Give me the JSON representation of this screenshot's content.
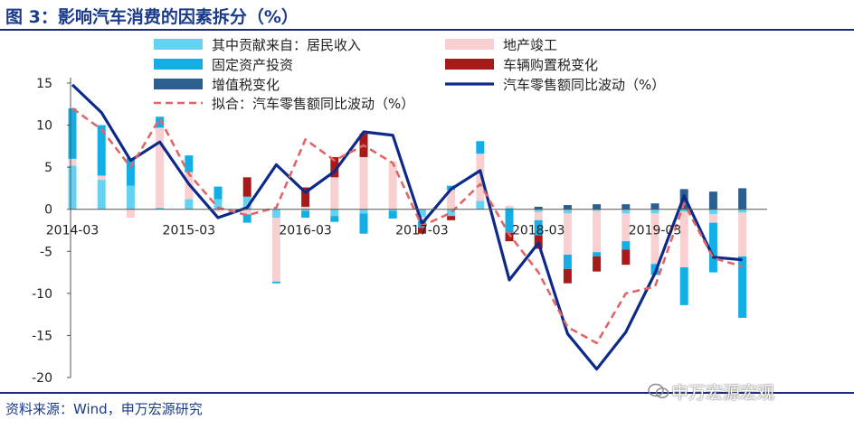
{
  "header": {
    "title": "图 3：影响汽车消费的因素拆分（%）"
  },
  "footer": {
    "source": "资料来源：Wind，申万宏源研究",
    "watermark": "申万宏源宏观"
  },
  "chart_data": {
    "type": "bar",
    "title": "图 3：影响汽车消费的因素拆分（%）",
    "xlabel": "",
    "ylabel": "",
    "ylim": [
      -20,
      15
    ],
    "yticks": [
      15,
      10,
      5,
      0,
      -5,
      -10,
      -15,
      -20
    ],
    "x_tick_labels": [
      "2014-03",
      "2015-03",
      "2016-03",
      "2017-03",
      "2018-03",
      "2019-03"
    ],
    "categories": [
      "2014Q1",
      "2014Q2",
      "2014Q3",
      "2014Q4",
      "2015Q1",
      "2015Q2",
      "2015Q3",
      "2015Q4",
      "2016Q1",
      "2016Q2",
      "2016Q3",
      "2016Q4",
      "2017Q1",
      "2017Q2",
      "2017Q3",
      "2017Q4",
      "2018Q1",
      "2018Q2",
      "2018Q3",
      "2018Q4",
      "2019Q1",
      "2019Q2",
      "2019Q3",
      "2019Q4"
    ],
    "legend": "top",
    "grid": false,
    "series": [
      {
        "name": "其中贡献来自：居民收入",
        "kind": "bar",
        "color": "#66d2f2",
        "values": [
          5.2,
          3.5,
          2.8,
          0.2,
          1.2,
          1.2,
          1.5,
          -1.0,
          -0.2,
          -0.8,
          -0.5,
          -0.2,
          -0.9,
          -0.8,
          1.0,
          0.2,
          -0.3,
          -0.5,
          -0.2,
          -0.5,
          -0.5,
          -0.3,
          -0.6,
          -0.4
        ]
      },
      {
        "name": "地产竣工",
        "kind": "bar",
        "color": "#f8d0d2",
        "values": [
          0.8,
          0.5,
          -1.0,
          9.5,
          3.2,
          -0.3,
          -0.6,
          -7.6,
          0.3,
          3.8,
          6.2,
          5.7,
          -0.5,
          2.3,
          5.6,
          0.2,
          -1.0,
          -4.9,
          -4.9,
          -3.3,
          -6.0,
          -6.6,
          -1.0,
          -5.2
        ]
      },
      {
        "name": "固定资产投资",
        "kind": "bar",
        "color": "#11afe6",
        "values": [
          6.0,
          6.0,
          3.3,
          1.3,
          2.0,
          1.5,
          -1.0,
          -0.2,
          -0.8,
          -0.7,
          -2.4,
          -0.9,
          -0.8,
          0.5,
          1.5,
          -2.8,
          -1.8,
          -1.7,
          -0.5,
          -1.0,
          -1.3,
          -4.5,
          -5.9,
          -7.3
        ]
      },
      {
        "name": "车辆购置税变化",
        "kind": "bar",
        "color": "#a81a1a",
        "values": [
          0,
          0,
          0,
          0,
          0,
          0,
          2.3,
          0,
          2.3,
          2.4,
          2.8,
          0,
          -0.7,
          -0.5,
          0,
          -1.0,
          -1.6,
          -1.7,
          -1.8,
          -1.8,
          0,
          0,
          0,
          0
        ]
      },
      {
        "name": "增值税变化",
        "kind": "bar",
        "color": "#2c5f8e",
        "values": [
          0,
          0,
          0,
          0,
          0,
          0,
          0,
          0,
          0,
          0,
          0,
          0,
          0,
          0,
          0,
          0,
          0.3,
          0.5,
          0.6,
          0.6,
          0.7,
          2.4,
          2.1,
          2.5
        ]
      },
      {
        "name": "汽车零售额同比波动（%）",
        "kind": "line",
        "color": "#0d2a8a",
        "values": [
          14.8,
          11.5,
          5.8,
          8.0,
          3.0,
          -1.0,
          0.2,
          5.3,
          2.0,
          4.5,
          9.2,
          8.8,
          -1.7,
          2.4,
          4.6,
          -8.4,
          -4.0,
          -14.8,
          -19.0,
          -14.6,
          -7.6,
          1.6,
          -5.7,
          -6.0
        ]
      },
      {
        "name": "拟合：汽车零售额同比波动（%）",
        "kind": "dashed-line",
        "color": "#e06666",
        "values": [
          12.0,
          9.5,
          5.0,
          10.8,
          4.2,
          0.2,
          -0.7,
          0.2,
          8.3,
          5.8,
          7.6,
          5.5,
          -2.0,
          -0.4,
          3.0,
          -3.0,
          -7.5,
          -14.0,
          -15.9,
          -10.0,
          -9.2,
          0.7,
          -5.8,
          -6.8
        ]
      }
    ],
    "legend_layout": [
      {
        "series": 0,
        "label": "其中贡献来自：居民收入"
      },
      {
        "series": 1,
        "label": "地产竣工"
      },
      {
        "series": 2,
        "label": "固定资产投资"
      },
      {
        "series": 3,
        "label": "车辆购置税变化"
      },
      {
        "series": 4,
        "label": "增值税变化"
      },
      {
        "series": 5,
        "label": "汽车零售额同比波动（%）"
      },
      {
        "series": 6,
        "label": "拟合：汽车零售额同比波动（%）"
      }
    ]
  }
}
